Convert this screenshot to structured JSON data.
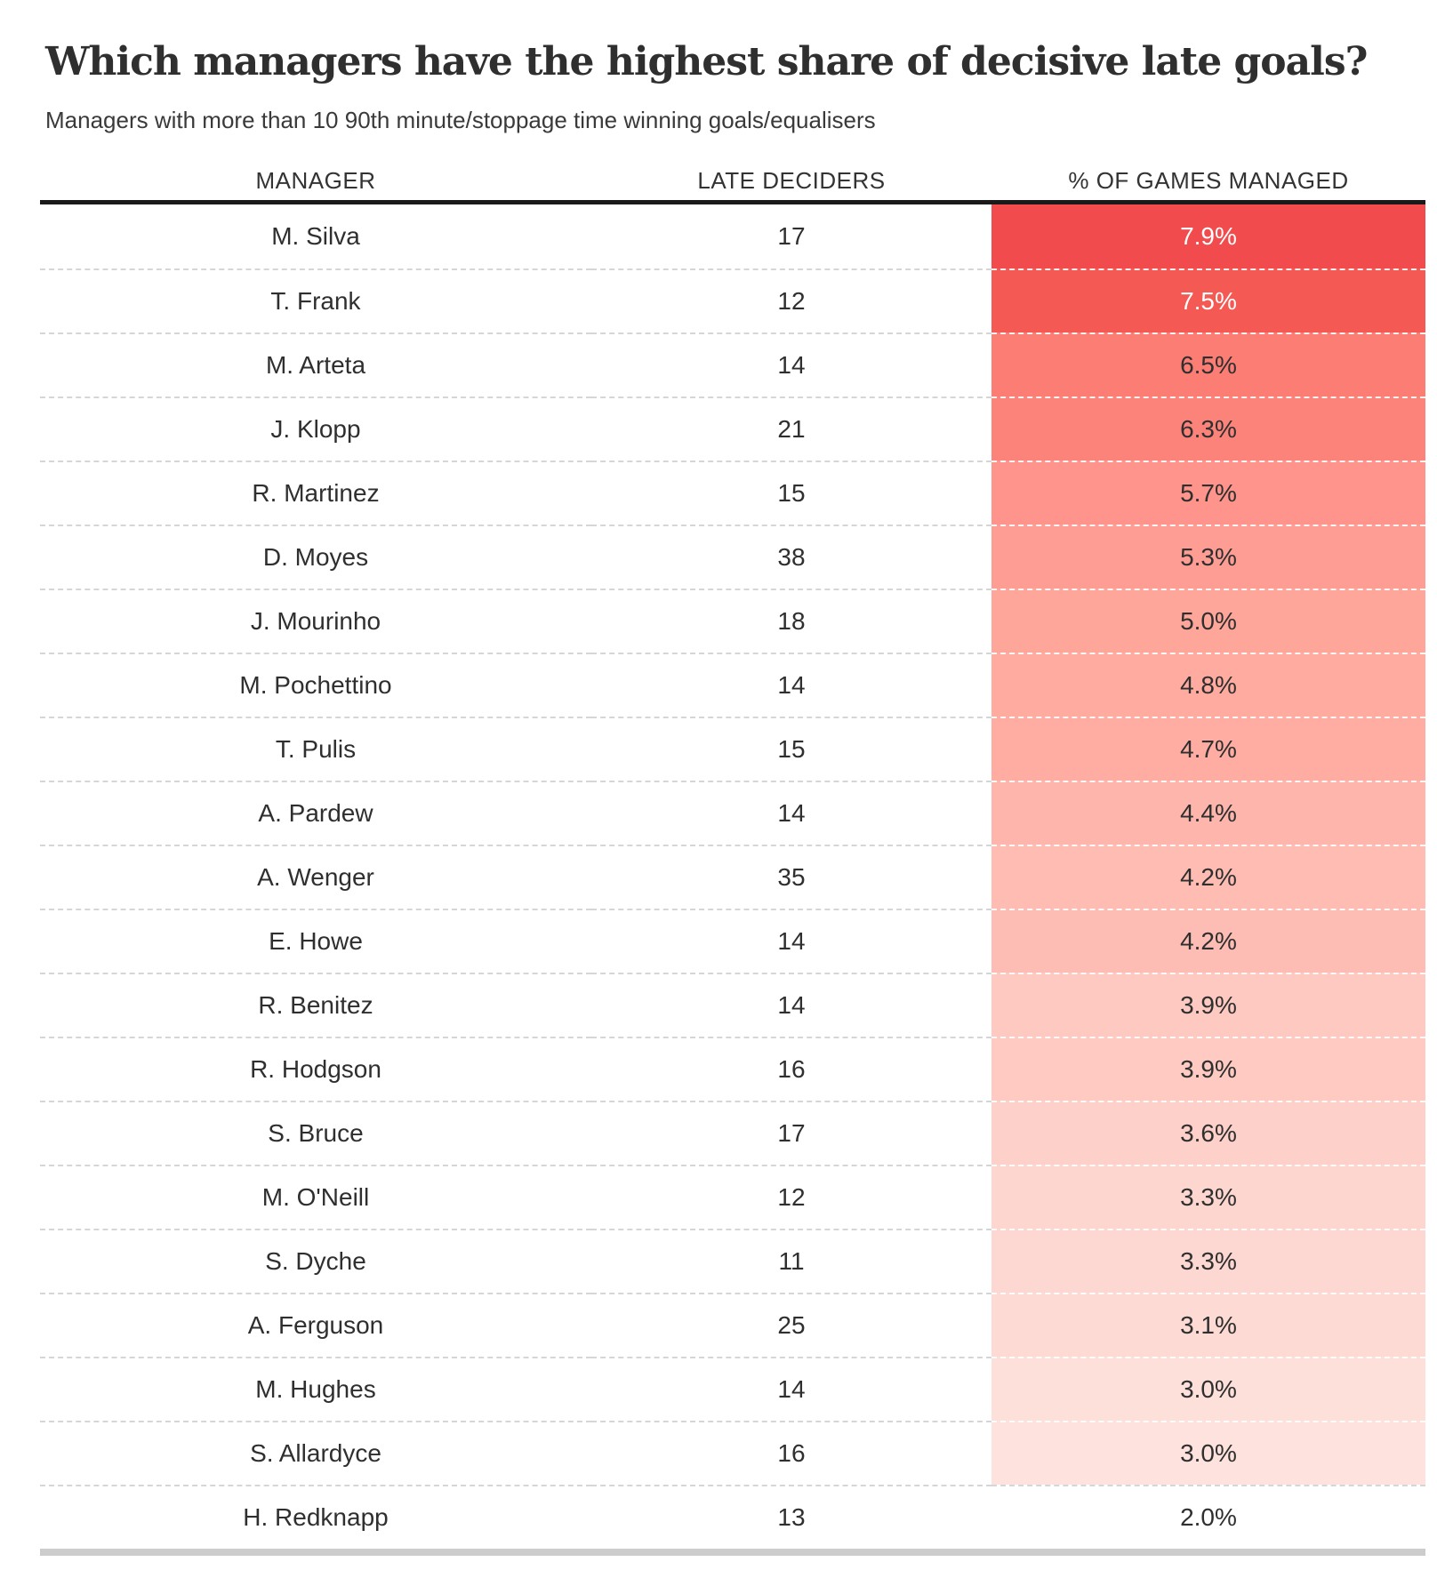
{
  "title": "Which managers have the highest share of decisive late goals?",
  "subtitle": "Managers with more than 10 90th minute/stoppage time winning goals/equalisers",
  "colors": {
    "heat_max": "#f24b4e",
    "heat_min": "#fee0db",
    "header_rule": "#1a1a1a",
    "bottom_rule": "#cccccc",
    "body_text": "#2f2f2f"
  },
  "table": {
    "columns": [
      "MANAGER",
      "LATE DECIDERS",
      "% OF GAMES MANAGED"
    ],
    "rows": [
      {
        "manager": "M. Silva",
        "late_deciders": "17",
        "pct": "7.9%",
        "cell_color": "#f24b4e",
        "text_color": "#ffffff"
      },
      {
        "manager": "T. Frank",
        "late_deciders": "12",
        "pct": "7.5%",
        "cell_color": "#f45953",
        "text_color": "#ffffff"
      },
      {
        "manager": "M. Arteta",
        "late_deciders": "14",
        "pct": "6.5%",
        "cell_color": "#fb7d74",
        "text_color": "#2f2f2f"
      },
      {
        "manager": "J. Klopp",
        "late_deciders": "21",
        "pct": "6.3%",
        "cell_color": "#fc837a",
        "text_color": "#2f2f2f"
      },
      {
        "manager": "R. Martinez",
        "late_deciders": "15",
        "pct": "5.7%",
        "cell_color": "#fe948b",
        "text_color": "#2f2f2f"
      },
      {
        "manager": "D. Moyes",
        "late_deciders": "38",
        "pct": "5.3%",
        "cell_color": "#fe9d93",
        "text_color": "#2f2f2f"
      },
      {
        "manager": "J. Mourinho",
        "late_deciders": "18",
        "pct": "5.0%",
        "cell_color": "#ffa69b",
        "text_color": "#2f2f2f"
      },
      {
        "manager": "M. Pochettino",
        "late_deciders": "14",
        "pct": "4.8%",
        "cell_color": "#ffaba0",
        "text_color": "#2f2f2f"
      },
      {
        "manager": "T. Pulis",
        "late_deciders": "15",
        "pct": "4.7%",
        "cell_color": "#ffada3",
        "text_color": "#2f2f2f"
      },
      {
        "manager": "A. Pardew",
        "late_deciders": "14",
        "pct": "4.4%",
        "cell_color": "#feb6ac",
        "text_color": "#2f2f2f"
      },
      {
        "manager": "A. Wenger",
        "late_deciders": "35",
        "pct": "4.2%",
        "cell_color": "#febcb3",
        "text_color": "#2f2f2f"
      },
      {
        "manager": "E. Howe",
        "late_deciders": "14",
        "pct": "4.2%",
        "cell_color": "#febdb4",
        "text_color": "#2f2f2f"
      },
      {
        "manager": "R. Benitez",
        "late_deciders": "14",
        "pct": "3.9%",
        "cell_color": "#fec9c1",
        "text_color": "#2f2f2f"
      },
      {
        "manager": "R. Hodgson",
        "late_deciders": "16",
        "pct": "3.9%",
        "cell_color": "#fecac2",
        "text_color": "#2f2f2f"
      },
      {
        "manager": "S. Bruce",
        "late_deciders": "17",
        "pct": "3.6%",
        "cell_color": "#fdd0c9",
        "text_color": "#2f2f2f"
      },
      {
        "manager": "M. O'Neill",
        "late_deciders": "12",
        "pct": "3.3%",
        "cell_color": "#fdd6d0",
        "text_color": "#2f2f2f"
      },
      {
        "manager": "S. Dyche",
        "late_deciders": "11",
        "pct": "3.3%",
        "cell_color": "#fdd7d1",
        "text_color": "#2f2f2f"
      },
      {
        "manager": "A. Ferguson",
        "late_deciders": "25",
        "pct": "3.1%",
        "cell_color": "#fddad4",
        "text_color": "#2f2f2f"
      },
      {
        "manager": "M. Hughes",
        "late_deciders": "14",
        "pct": "3.0%",
        "cell_color": "#fee0db",
        "text_color": "#2f2f2f"
      },
      {
        "manager": "S. Allardyce",
        "late_deciders": "16",
        "pct": "3.0%",
        "cell_color": "#fee2dd",
        "text_color": "#2f2f2f"
      },
      {
        "manager": "H. Redknapp",
        "late_deciders": "13",
        "pct": "2.0%",
        "cell_color": null,
        "text_color": "#2f2f2f"
      }
    ]
  },
  "chart_data": {
    "type": "table",
    "title": "Which managers have the highest share of decisive late goals?",
    "subtitle": "Managers with more than 10 90th minute/stoppage time winning goals/equalisers",
    "columns": [
      "MANAGER",
      "LATE DECIDERS",
      "% OF GAMES MANAGED"
    ],
    "categories": [
      "M. Silva",
      "T. Frank",
      "M. Arteta",
      "J. Klopp",
      "R. Martinez",
      "D. Moyes",
      "J. Mourinho",
      "M. Pochettino",
      "T. Pulis",
      "A. Pardew",
      "A. Wenger",
      "E. Howe",
      "R. Benitez",
      "R. Hodgson",
      "S. Bruce",
      "M. O'Neill",
      "S. Dyche",
      "A. Ferguson",
      "M. Hughes",
      "S. Allardyce",
      "H. Redknapp"
    ],
    "series": [
      {
        "name": "Late deciders",
        "values": [
          17,
          12,
          14,
          21,
          15,
          38,
          18,
          14,
          15,
          14,
          35,
          14,
          14,
          16,
          17,
          12,
          11,
          25,
          14,
          16,
          13
        ]
      },
      {
        "name": "% of games managed",
        "values": [
          7.9,
          7.5,
          6.5,
          6.3,
          5.7,
          5.3,
          5.0,
          4.8,
          4.7,
          4.4,
          4.2,
          4.2,
          3.9,
          3.9,
          3.6,
          3.3,
          3.3,
          3.1,
          3.0,
          3.0,
          2.0
        ]
      }
    ],
    "heatmap_column": "% OF GAMES MANAGED",
    "heatmap_range": [
      2.0,
      7.9
    ],
    "legend_position": "none",
    "grid": "dashed-row-separators"
  }
}
